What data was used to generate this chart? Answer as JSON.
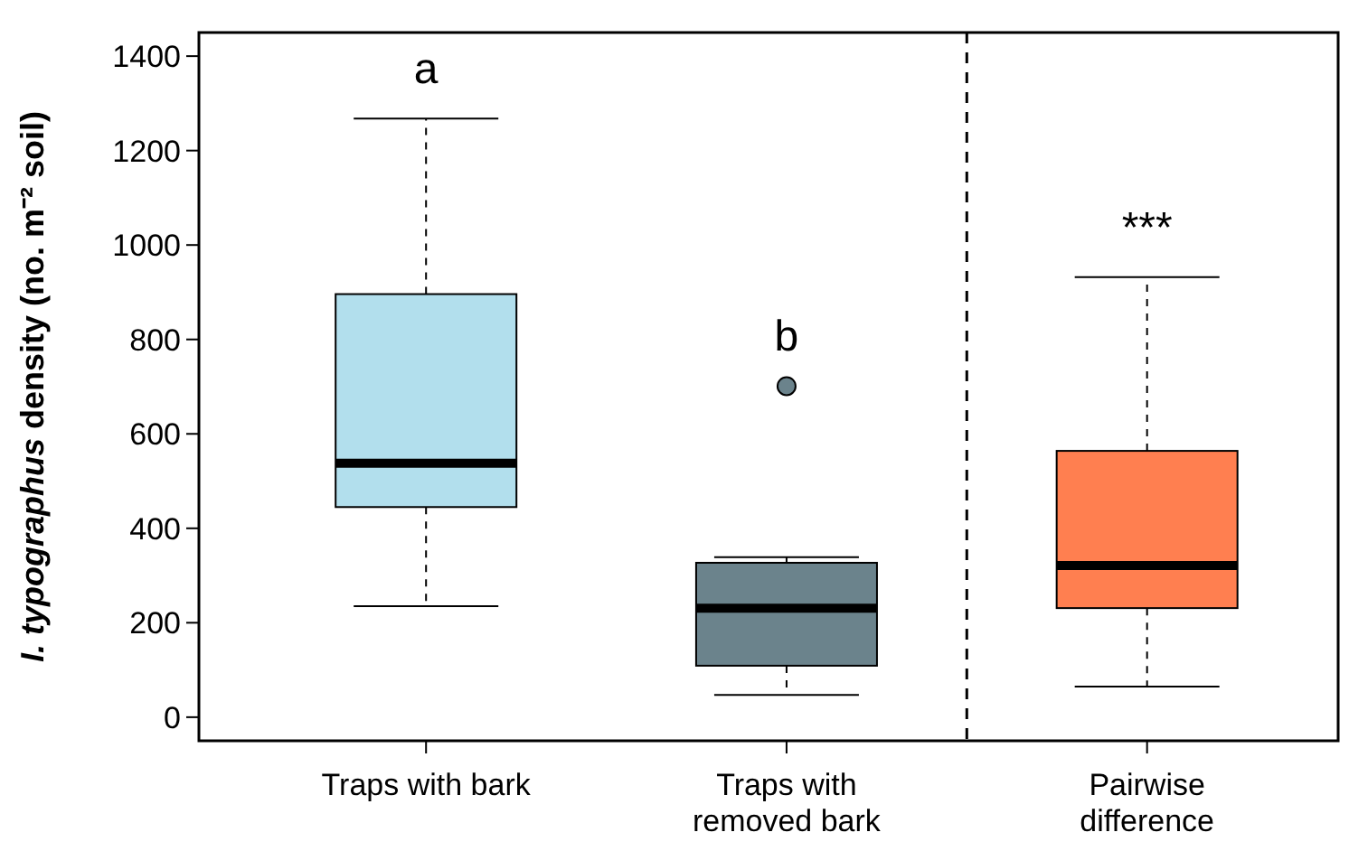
{
  "chart_data": {
    "type": "box",
    "ylabel": "I. typographus density (no. m⁻² soil)",
    "categories": [
      "Traps with bark",
      "Traps with removed bark",
      "Pairwise difference"
    ],
    "colors": [
      "#b2dfed",
      "#6b838c",
      "#ff7f50"
    ],
    "boxes": [
      {
        "low": 235,
        "q1": 445,
        "median": 538,
        "q3": 896,
        "high": 1268
      },
      {
        "low": 47,
        "q1": 109,
        "median": 231,
        "q3": 327,
        "high": 339,
        "outliers": [
          701
        ]
      },
      {
        "low": 65,
        "q1": 231,
        "median": 321,
        "q3": 564,
        "high": 932
      }
    ],
    "ylim": [
      -50,
      1450
    ],
    "yticks": [
      0,
      200,
      400,
      600,
      800,
      1000,
      1200,
      1400
    ],
    "annotations": [
      "a",
      "b",
      "***"
    ],
    "grid": false
  }
}
